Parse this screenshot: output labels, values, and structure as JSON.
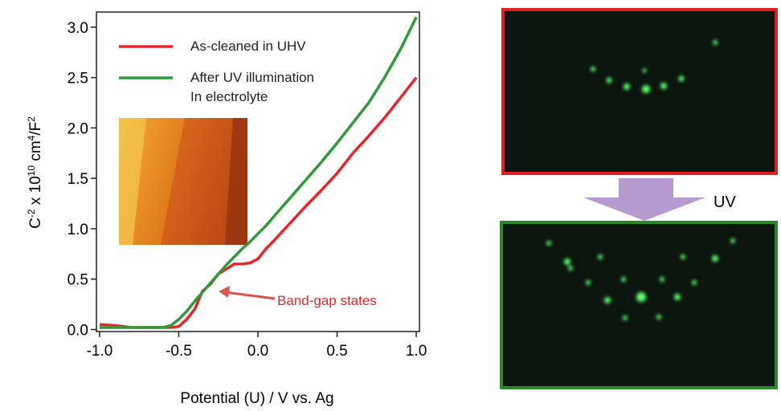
{
  "chart_data": {
    "type": "line",
    "x_label": "Potential (U) / V vs. Ag",
    "y_label": [
      "C",
      "-2",
      " x 10",
      "10",
      " cm",
      "4",
      "/F",
      "2"
    ],
    "x": [
      -1.0,
      -0.9,
      -0.8,
      -0.7,
      -0.6,
      -0.55,
      -0.5,
      -0.45,
      -0.4,
      -0.35,
      -0.3,
      -0.25,
      -0.2,
      -0.15,
      -0.1,
      -0.05,
      0,
      0.05,
      0.1,
      0.2,
      0.3,
      0.4,
      0.5,
      0.6,
      0.7,
      0.8,
      0.9,
      1.0
    ],
    "series": [
      {
        "name": "As-cleaned in UHV",
        "color": "#e8262a",
        "values": [
          0.05,
          0.04,
          0.02,
          0.02,
          0.02,
          0.02,
          0.03,
          0.1,
          0.2,
          0.38,
          0.45,
          0.55,
          0.6,
          0.65,
          0.65,
          0.66,
          0.7,
          0.8,
          0.88,
          1.05,
          1.22,
          1.38,
          1.55,
          1.75,
          1.92,
          2.1,
          2.3,
          2.5
        ]
      },
      {
        "name": "After UV illumination\nIn electrolyte",
        "color": "#2e9a3a",
        "values": [
          0.02,
          0.02,
          0.02,
          0.02,
          0.02,
          0.04,
          0.1,
          0.18,
          0.28,
          0.37,
          0.46,
          0.55,
          0.64,
          0.72,
          0.8,
          0.87,
          0.95,
          1.03,
          1.12,
          1.3,
          1.48,
          1.66,
          1.85,
          2.05,
          2.25,
          2.5,
          2.78,
          3.1
        ]
      }
    ],
    "xlim": [
      -1.02,
      1.02
    ],
    "ylim": [
      -0.02,
      3.15
    ],
    "xticks": [
      {
        "value": -1.0,
        "label": "-1.0"
      },
      -0.5,
      {
        "value": 0,
        "label": "0.0"
      },
      0.5,
      {
        "value": 1.0,
        "label": "1.0"
      }
    ],
    "yticks": [
      {
        "value": 0,
        "label": "0.0"
      },
      0.5,
      {
        "value": 1.0,
        "label": "1.0"
      },
      1.5,
      {
        "value": 2.0,
        "label": "2.0"
      },
      2.5,
      {
        "value": 3.0,
        "label": "3.0"
      }
    ],
    "annotations": [
      {
        "text": "Band-gap states"
      },
      {
        "text": "UV"
      }
    ]
  }
}
